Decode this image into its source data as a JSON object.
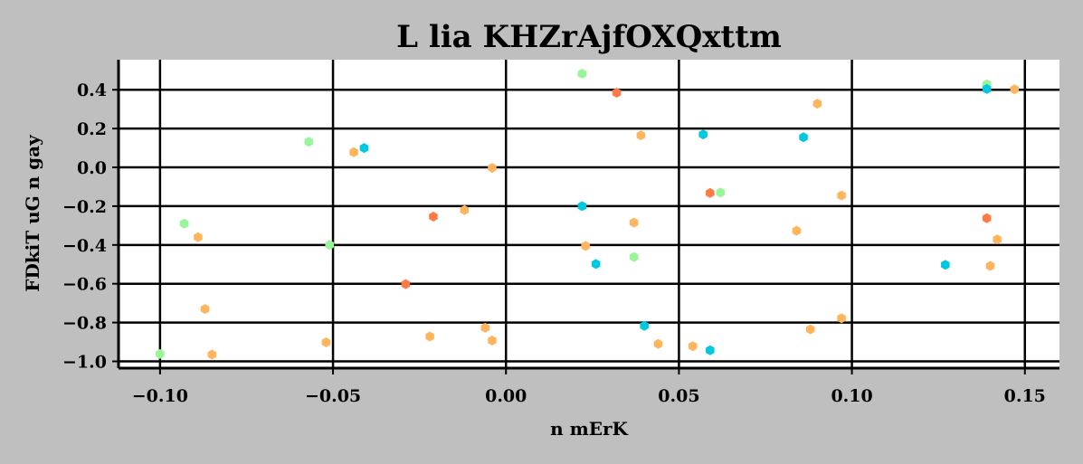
{
  "chart_data": {
    "type": "scatter",
    "title": "L lia KHZrAjfOXQxttm",
    "xlabel": "n mErK",
    "ylabel": "FDkiT uG n gay",
    "xlim": [
      -0.112,
      0.16
    ],
    "ylim": [
      -1.035,
      0.555
    ],
    "xticks": [
      -0.1,
      -0.05,
      0.0,
      0.05,
      0.1,
      0.15
    ],
    "xtick_labels": [
      "−0.10",
      "−0.05",
      "0.00",
      "0.05",
      "0.10",
      "0.15"
    ],
    "yticks": [
      -1.0,
      -0.8,
      -0.6,
      -0.4,
      -0.2,
      0.0,
      0.2,
      0.4
    ],
    "ytick_labels": [
      "−1.0",
      "−0.8",
      "−0.6",
      "−0.4",
      "−0.2",
      "0.0",
      "0.2",
      "0.4"
    ],
    "grid": true,
    "colors": {
      "background": "#bfbfbf",
      "plot_area": "#ffffff",
      "grid": "#000000"
    },
    "series": [
      {
        "color": "#98f598",
        "points": [
          [
            0.022,
            0.483
          ],
          [
            0.139,
            0.428
          ],
          [
            -0.057,
            0.132
          ],
          [
            0.062,
            -0.13
          ],
          [
            -0.093,
            -0.29
          ],
          [
            -0.051,
            -0.4
          ],
          [
            0.037,
            -0.462
          ],
          [
            -0.1,
            -0.962
          ]
        ]
      },
      {
        "color": "#ff7a45",
        "points": [
          [
            0.032,
            0.385
          ],
          [
            0.059,
            -0.132
          ],
          [
            -0.021,
            -0.254
          ],
          [
            0.139,
            -0.262
          ],
          [
            -0.029,
            -0.602
          ]
        ]
      },
      {
        "color": "#00c8de",
        "points": [
          [
            0.139,
            0.404
          ],
          [
            0.057,
            0.17
          ],
          [
            0.086,
            0.155
          ],
          [
            -0.041,
            0.1
          ],
          [
            0.022,
            -0.2
          ],
          [
            0.026,
            -0.498
          ],
          [
            0.127,
            -0.502
          ],
          [
            0.04,
            -0.817
          ],
          [
            0.059,
            -0.943
          ]
        ]
      },
      {
        "color": "#ffb55e",
        "points": [
          [
            0.147,
            0.402
          ],
          [
            0.09,
            0.328
          ],
          [
            0.039,
            0.165
          ],
          [
            -0.044,
            0.078
          ],
          [
            -0.004,
            -0.003
          ],
          [
            0.097,
            -0.145
          ],
          [
            -0.012,
            -0.22
          ],
          [
            0.037,
            -0.285
          ],
          [
            0.084,
            -0.327
          ],
          [
            -0.089,
            -0.36
          ],
          [
            0.142,
            -0.372
          ],
          [
            0.023,
            -0.405
          ],
          [
            0.14,
            -0.508
          ],
          [
            -0.087,
            -0.73
          ],
          [
            0.097,
            -0.778
          ],
          [
            -0.006,
            -0.827
          ],
          [
            0.088,
            -0.835
          ],
          [
            -0.022,
            -0.872
          ],
          [
            -0.004,
            -0.893
          ],
          [
            -0.052,
            -0.902
          ],
          [
            0.044,
            -0.91
          ],
          [
            0.054,
            -0.922
          ],
          [
            -0.085,
            -0.965
          ]
        ]
      }
    ]
  }
}
